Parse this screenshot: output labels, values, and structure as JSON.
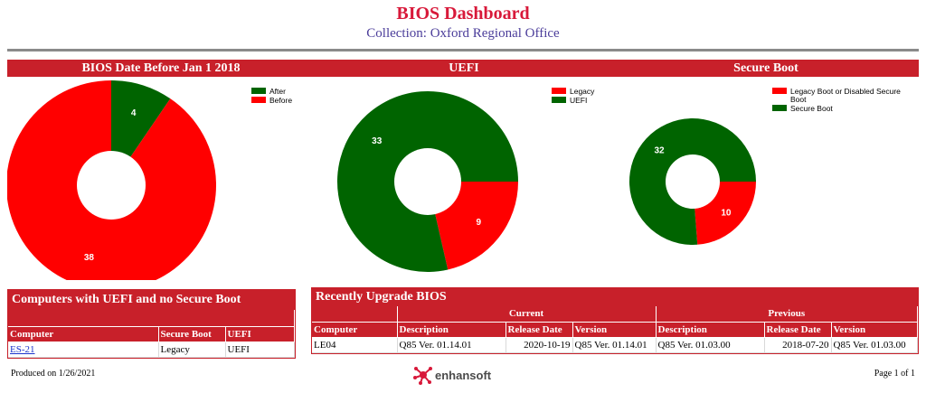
{
  "header": {
    "title": "BIOS Dashboard",
    "subtitle": "Collection: Oxford Regional Office"
  },
  "colors": {
    "red": "#ff0000",
    "green": "#006400",
    "band": "#c8202a"
  },
  "chart_data": [
    {
      "type": "pie",
      "title": "BIOS Date Before Jan 1 2018",
      "legend_placement": "top-right",
      "slices": [
        {
          "label": "After",
          "value": 4,
          "color": "#006400"
        },
        {
          "label": "Before",
          "value": 38,
          "color": "#ff0000"
        }
      ]
    },
    {
      "type": "pie",
      "title": "UEFI",
      "legend_placement": "top-right",
      "slices": [
        {
          "label": "Legacy",
          "value": 9,
          "color": "#ff0000"
        },
        {
          "label": "UEFI",
          "value": 33,
          "color": "#006400"
        }
      ]
    },
    {
      "type": "pie",
      "title": "Secure Boot",
      "legend_placement": "top-right",
      "slices": [
        {
          "label": "Legacy Boot or Disabled Secure Boot",
          "value": 10,
          "color": "#ff0000"
        },
        {
          "label": "Secure Boot",
          "value": 32,
          "color": "#006400"
        }
      ]
    }
  ],
  "uefi_table": {
    "title": "Computers with UEFI and no Secure Boot",
    "columns": [
      "Computer",
      "Secure Boot",
      "UEFI"
    ],
    "rows": [
      {
        "computer": "ES-21",
        "secure_boot": "Legacy",
        "uefi": "UEFI"
      }
    ]
  },
  "upgrade_table": {
    "title": "Recently Upgrade BIOS",
    "group_current": "Current",
    "group_previous": "Previous",
    "columns": [
      "Computer",
      "Description",
      "Release Date",
      "Version",
      "Description",
      "Release Date",
      "Version"
    ],
    "rows": [
      {
        "computer": "LE04",
        "cur_description": "Q85 Ver. 01.14.01",
        "cur_release_date": "2020-10-19",
        "cur_version": "Q85 Ver. 01.14.01",
        "prev_description": "Q85 Ver. 01.03.00",
        "prev_release_date": "2018-07-20",
        "prev_version": "Q85 Ver. 01.03.00"
      }
    ]
  },
  "footer": {
    "produced": "Produced on 1/26/2021",
    "page": "Page 1 of 1",
    "logo_text": "enhansoft"
  }
}
